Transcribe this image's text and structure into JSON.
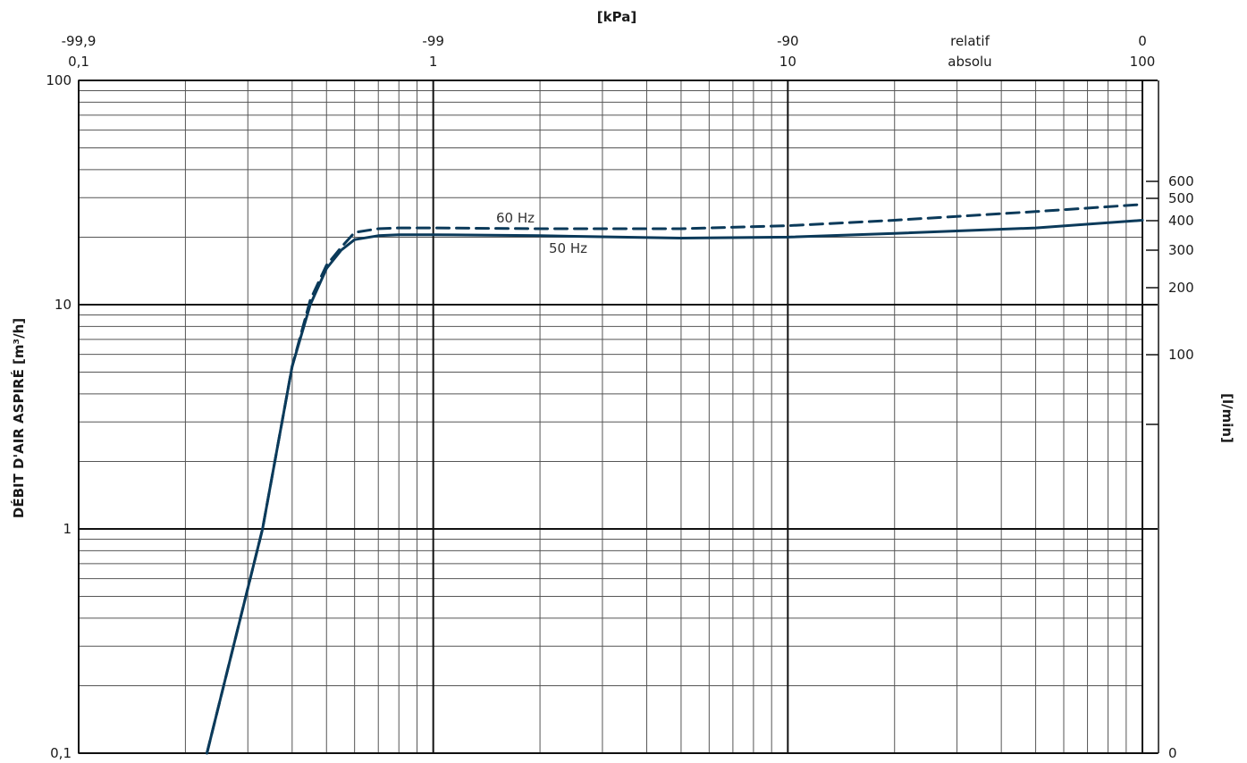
{
  "chart_data": {
    "type": "line",
    "title": "",
    "top_axis_title": "[kPa]",
    "ylabel": "DÉBIT D'AIR ASPIRÉ  [m³/h]",
    "y2label": "[l/min]",
    "x_scale": "log",
    "y_scale": "log",
    "grid": true,
    "xlim": [
      0.1,
      100
    ],
    "ylim": [
      0.1,
      100
    ],
    "x_ticks_absolute": [
      "0,1",
      "1",
      "10",
      "absolu",
      "100"
    ],
    "x_ticks_relative": [
      "-99,9",
      "-99",
      "-90",
      "relatif",
      "0"
    ],
    "y_ticks": [
      "0,1",
      "1",
      "10",
      "100"
    ],
    "y2_ticks": [
      "0",
      "100",
      "200",
      "300",
      "400",
      "500",
      "600"
    ],
    "series": [
      {
        "name": "60 Hz",
        "style": "dashed",
        "color": "#0b3a5a",
        "x": [
          0.23,
          0.33,
          0.4,
          0.45,
          0.5,
          0.55,
          0.6,
          0.7,
          0.8,
          1,
          2,
          5,
          10,
          20,
          50,
          100
        ],
        "y": [
          0.1,
          1.0,
          5.3,
          10.5,
          15.0,
          18.0,
          21.0,
          21.8,
          22.0,
          22.0,
          21.8,
          21.8,
          22.5,
          23.8,
          26.0,
          28.0
        ]
      },
      {
        "name": "50 Hz",
        "style": "solid",
        "color": "#0b3a5a",
        "x": [
          0.23,
          0.33,
          0.4,
          0.45,
          0.5,
          0.55,
          0.6,
          0.7,
          0.8,
          1,
          2,
          5,
          10,
          20,
          50,
          100
        ],
        "y": [
          0.1,
          1.0,
          5.3,
          10.0,
          14.5,
          17.5,
          19.5,
          20.3,
          20.5,
          20.5,
          20.3,
          19.8,
          20.0,
          20.8,
          22.0,
          23.8
        ]
      }
    ]
  }
}
